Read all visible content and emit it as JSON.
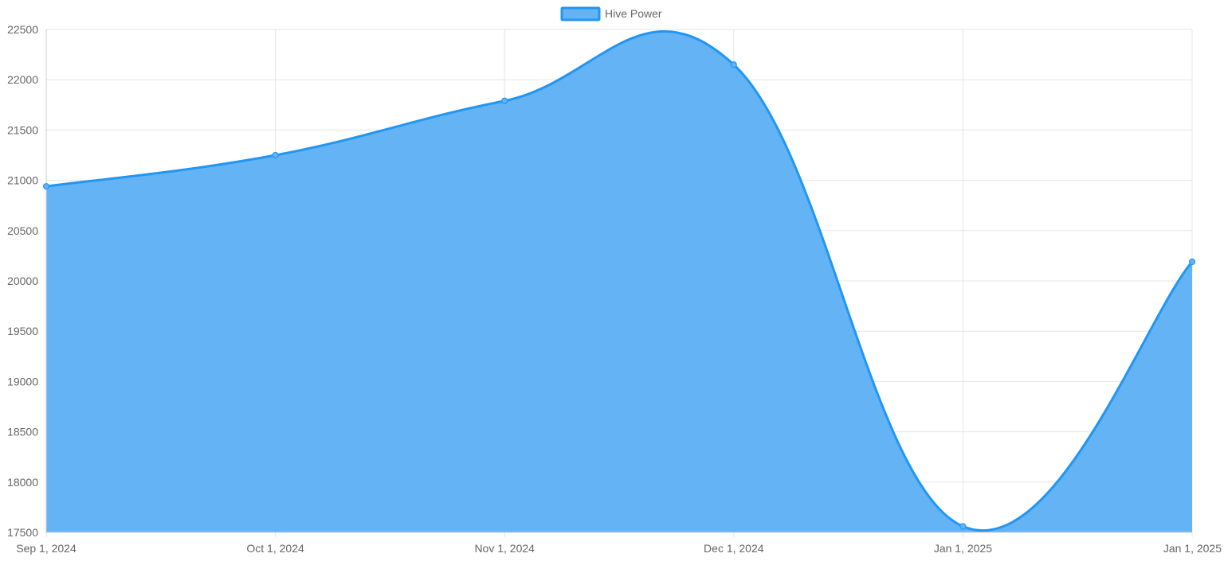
{
  "chart_data": {
    "type": "area",
    "legend": {
      "position": "top-center",
      "entries": [
        {
          "label": "Hive Power"
        }
      ]
    },
    "x_tick_labels": [
      "Sep 1, 2024",
      "Oct 1, 2024",
      "Nov 1, 2024",
      "Dec 1, 2024",
      "Jan 1, 2025",
      "Jan 1, 2025"
    ],
    "y_tick_labels": [
      "22500",
      "22000",
      "21500",
      "21000",
      "20500",
      "20000",
      "19500",
      "19000",
      "18500",
      "18000",
      "17500"
    ],
    "ylim": [
      17500,
      22500
    ],
    "grid": true,
    "smooth": true,
    "series": [
      {
        "name": "Hive Power",
        "values": [
          20940,
          21250,
          21790,
          22150,
          17560,
          20190
        ]
      }
    ],
    "colors": {
      "fill": "#64b3f4",
      "line": "#2196f3",
      "point": "#64b3f4",
      "grid": "#e5e5e5",
      "axis": "#cfcfcf",
      "tick_text": "#666666"
    }
  }
}
